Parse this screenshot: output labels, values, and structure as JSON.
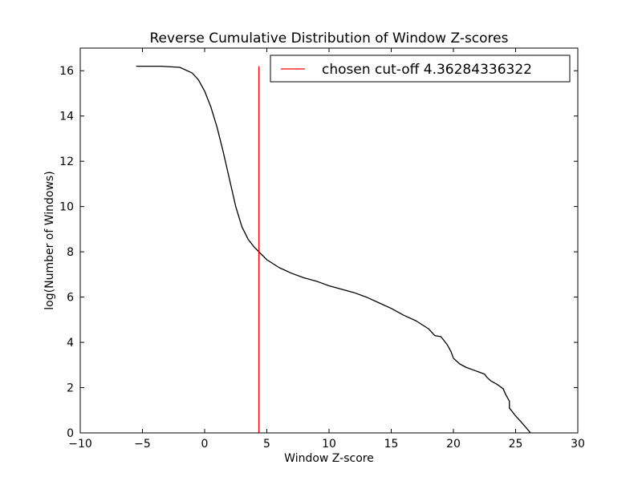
{
  "chart_data": {
    "type": "line",
    "title": "Reverse Cumulative Distribution of Window Z-scores",
    "xlabel": "Window Z-score",
    "ylabel": "log(Number of Windows)",
    "xlim": [
      -10,
      30
    ],
    "ylim": [
      0,
      17
    ],
    "xticks": [
      -10,
      -5,
      0,
      5,
      10,
      15,
      20,
      25,
      30
    ],
    "xtick_labels": [
      "−10",
      "−5",
      "0",
      "5",
      "10",
      "15",
      "20",
      "25",
      "30"
    ],
    "yticks": [
      0,
      2,
      4,
      6,
      8,
      10,
      12,
      14,
      16
    ],
    "ytick_labels": [
      "0",
      "2",
      "4",
      "6",
      "8",
      "10",
      "12",
      "14",
      "16"
    ],
    "grid": false,
    "legend": {
      "position": "top-right",
      "entries": [
        {
          "label": "chosen cut-off 4.36284336322",
          "color": "#ff0000"
        }
      ]
    },
    "series": [
      {
        "color": "#000000",
        "x": [
          -5.5,
          -3.5,
          -2.0,
          -1.0,
          -0.5,
          0.0,
          0.5,
          1.0,
          1.5,
          2.0,
          2.5,
          3.0,
          3.5,
          4.0,
          4.36,
          5.0,
          6.0,
          7.0,
          8.0,
          9.0,
          10.0,
          11.0,
          12.0,
          13.0,
          14.0,
          15.0,
          16.0,
          17.0,
          18.0,
          18.5,
          19.0,
          19.5,
          19.8,
          20.0,
          20.5,
          21.0,
          21.5,
          22.0,
          22.5,
          22.7,
          23.0,
          23.5,
          24.0,
          24.2,
          24.5,
          24.5,
          25.0,
          25.5,
          26.2
        ],
        "y": [
          16.2,
          16.2,
          16.15,
          15.9,
          15.6,
          15.1,
          14.4,
          13.5,
          12.4,
          11.2,
          10.0,
          9.1,
          8.55,
          8.2,
          8.0,
          7.65,
          7.3,
          7.05,
          6.85,
          6.7,
          6.5,
          6.35,
          6.2,
          6.0,
          5.75,
          5.5,
          5.2,
          4.95,
          4.6,
          4.3,
          4.25,
          3.9,
          3.6,
          3.3,
          3.05,
          2.9,
          2.8,
          2.7,
          2.6,
          2.45,
          2.3,
          2.15,
          1.95,
          1.7,
          1.4,
          1.1,
          0.75,
          0.45,
          0.0
        ]
      },
      {
        "color": "#ff0000",
        "x": [
          4.36284336322,
          4.36284336322
        ],
        "y": [
          0,
          16.2
        ]
      }
    ]
  }
}
